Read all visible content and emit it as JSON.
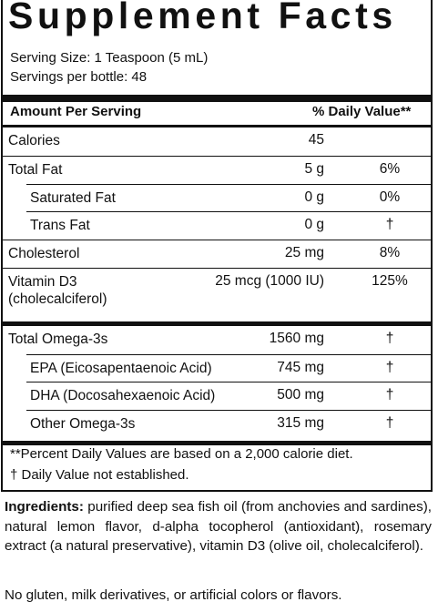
{
  "title": "Supplement Facts",
  "serving": [
    "Serving Size: 1 Teaspoon (5 mL)",
    "Servings per bottle: 48"
  ],
  "header": [
    "Amount Per Serving",
    "% Daily Value**"
  ],
  "groups": [
    {
      "rows": [
        {
          "name": [
            "Calories"
          ],
          "amount": "45",
          "dv": ""
        },
        {
          "name": [
            "Total Fat"
          ],
          "amount": "5 g",
          "dv": "6%",
          "sub": [
            {
              "name": "Saturated Fat",
              "amount": "0 g",
              "dv": "0%"
            },
            {
              "name": "Trans Fat",
              "amount": "0 g",
              "dv": "†"
            }
          ]
        },
        {
          "name": [
            "Cholesterol"
          ],
          "amount": "25 mg",
          "dv": "8%"
        },
        {
          "name": [
            "Vitamin D3",
            "(cholecalciferol)"
          ],
          "amount": "25 mcg (1000 IU)",
          "dv": "125%"
        }
      ]
    },
    {
      "rows": [
        {
          "name": [
            "Total Omega-3s"
          ],
          "amount": "1560 mg",
          "dv": "†",
          "sub": [
            {
              "name": "EPA (Eicosapentaenoic Acid)",
              "amount": "745 mg",
              "dv": "†"
            },
            {
              "name": "DHA (Docosahexaenoic Acid)",
              "amount": "500 mg",
              "dv": "†"
            },
            {
              "name": "Other Omega-3s",
              "amount": "315 mg",
              "dv": "†"
            }
          ]
        }
      ]
    }
  ],
  "footnotes": [
    "**Percent Daily Values are based on a 2,000 calorie diet.",
    "†  Daily Value not established."
  ],
  "ingredients": {
    "label": "Ingredients:",
    "text": " purified deep sea fish oil (from anchovies and sardines), natural lemon flavor, d-alpha tocopherol (antioxidant), rosemary extract (a natural preservative), vitamin D3 (olive oil, cholecalciferol)."
  },
  "note": "No gluten, milk derivatives, or artificial colors or flavors."
}
